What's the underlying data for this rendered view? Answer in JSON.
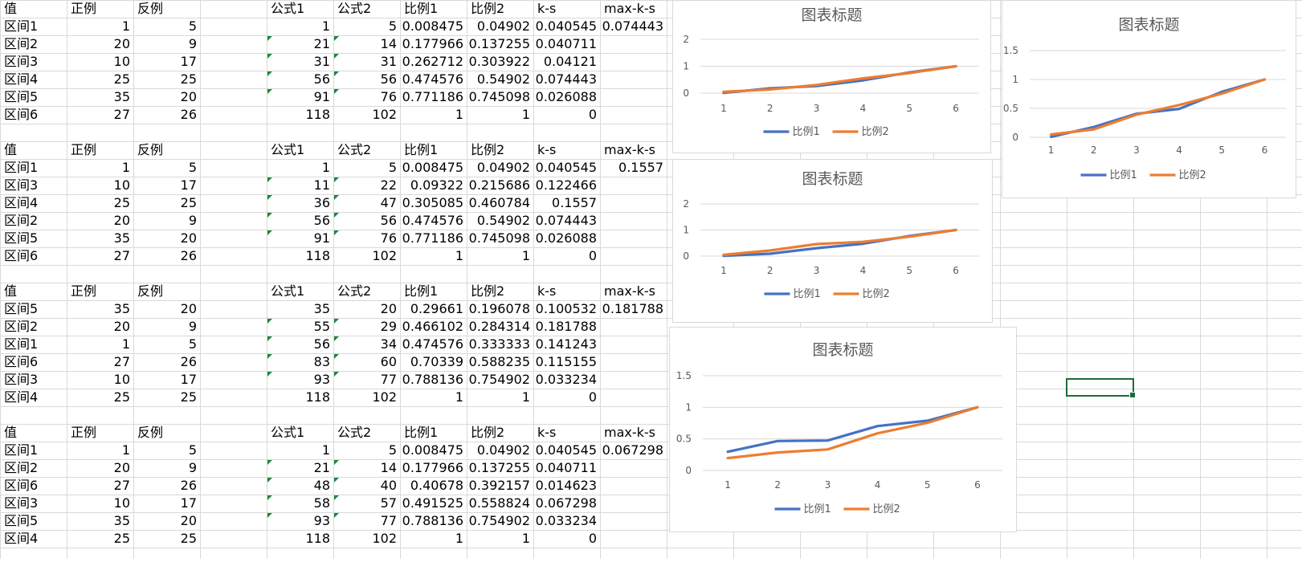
{
  "tables": [
    {
      "header": [
        "值",
        "正例",
        "反例",
        "公式1",
        "公式2",
        "比例1",
        "比例2",
        "k-s",
        "max-k-s"
      ],
      "max_ks": "0.074443",
      "rows": [
        [
          "区间1",
          "1",
          "5",
          "1",
          "5",
          "0.008475",
          "0.04902",
          "0.040545"
        ],
        [
          "区间2",
          "20",
          "9",
          "21",
          "14",
          "0.177966",
          "0.137255",
          "0.040711"
        ],
        [
          "区间3",
          "10",
          "17",
          "31",
          "31",
          "0.262712",
          "0.303922",
          "0.04121"
        ],
        [
          "区间4",
          "25",
          "25",
          "56",
          "56",
          "0.474576",
          "0.54902",
          "0.074443"
        ],
        [
          "区间5",
          "35",
          "20",
          "91",
          "76",
          "0.771186",
          "0.745098",
          "0.026088"
        ],
        [
          "区间6",
          "27",
          "26",
          "118",
          "102",
          "1",
          "1",
          "0"
        ]
      ]
    },
    {
      "header": [
        "值",
        "正例",
        "反例",
        "公式1",
        "公式2",
        "比例1",
        "比例2",
        "k-s",
        "max-k-s"
      ],
      "max_ks": "0.1557",
      "rows": [
        [
          "区间1",
          "1",
          "5",
          "1",
          "5",
          "0.008475",
          "0.04902",
          "0.040545"
        ],
        [
          "区间3",
          "10",
          "17",
          "11",
          "22",
          "0.09322",
          "0.215686",
          "0.122466"
        ],
        [
          "区间4",
          "25",
          "25",
          "36",
          "47",
          "0.305085",
          "0.460784",
          "0.1557"
        ],
        [
          "区间2",
          "20",
          "9",
          "56",
          "56",
          "0.474576",
          "0.54902",
          "0.074443"
        ],
        [
          "区间5",
          "35",
          "20",
          "91",
          "76",
          "0.771186",
          "0.745098",
          "0.026088"
        ],
        [
          "区间6",
          "27",
          "26",
          "118",
          "102",
          "1",
          "1",
          "0"
        ]
      ]
    },
    {
      "header": [
        "值",
        "正例",
        "反例",
        "公式1",
        "公式2",
        "比例1",
        "比例2",
        "k-s",
        "max-k-s"
      ],
      "max_ks": "0.181788",
      "rows": [
        [
          "区间5",
          "35",
          "20",
          "35",
          "20",
          "0.29661",
          "0.196078",
          "0.100532"
        ],
        [
          "区间2",
          "20",
          "9",
          "55",
          "29",
          "0.466102",
          "0.284314",
          "0.181788"
        ],
        [
          "区间1",
          "1",
          "5",
          "56",
          "34",
          "0.474576",
          "0.333333",
          "0.141243"
        ],
        [
          "区间6",
          "27",
          "26",
          "83",
          "60",
          "0.70339",
          "0.588235",
          "0.115155"
        ],
        [
          "区间3",
          "10",
          "17",
          "93",
          "77",
          "0.788136",
          "0.754902",
          "0.033234"
        ],
        [
          "区间4",
          "25",
          "25",
          "118",
          "102",
          "1",
          "1",
          "0"
        ]
      ]
    },
    {
      "header": [
        "值",
        "正例",
        "反例",
        "公式1",
        "公式2",
        "比例1",
        "比例2",
        "k-s",
        "max-k-s"
      ],
      "max_ks": "0.067298",
      "rows": [
        [
          "区间1",
          "1",
          "5",
          "1",
          "5",
          "0.008475",
          "0.04902",
          "0.040545"
        ],
        [
          "区间2",
          "20",
          "9",
          "21",
          "14",
          "0.177966",
          "0.137255",
          "0.040711"
        ],
        [
          "区间6",
          "27",
          "26",
          "48",
          "40",
          "0.40678",
          "0.392157",
          "0.014623"
        ],
        [
          "区间3",
          "10",
          "17",
          "58",
          "57",
          "0.491525",
          "0.558824",
          "0.067298"
        ],
        [
          "区间5",
          "35",
          "20",
          "93",
          "77",
          "0.788136",
          "0.754902",
          "0.033234"
        ],
        [
          "区间4",
          "25",
          "25",
          "118",
          "102",
          "1",
          "1",
          "0"
        ]
      ]
    }
  ],
  "colors": {
    "series1": "#4472c4",
    "series2": "#ed7d31",
    "grid": "#d9d9d9",
    "selection": "#1e6b3a",
    "formula_indicator": "#1a8a3a"
  },
  "chart_data": [
    {
      "type": "line",
      "title": "图表标题",
      "categories": [
        "1",
        "2",
        "3",
        "4",
        "5",
        "6"
      ],
      "ylim": [
        0,
        2
      ],
      "yticks": [
        "0",
        "1",
        "2"
      ],
      "series": [
        {
          "name": "比例1",
          "values": [
            0.008475,
            0.177966,
            0.262712,
            0.474576,
            0.771186,
            1
          ]
        },
        {
          "name": "比例2",
          "values": [
            0.04902,
            0.137255,
            0.303922,
            0.54902,
            0.745098,
            1
          ]
        }
      ],
      "grid": true,
      "legend": "bottom"
    },
    {
      "type": "line",
      "title": "图表标题",
      "categories": [
        "1",
        "2",
        "3",
        "4",
        "5",
        "6"
      ],
      "ylim": [
        0,
        1.5
      ],
      "yticks": [
        "0",
        "0.5",
        "1",
        "1.5"
      ],
      "series": [
        {
          "name": "比例1",
          "values": [
            0.008475,
            0.177966,
            0.40678,
            0.491525,
            0.788136,
            1
          ]
        },
        {
          "name": "比例2",
          "values": [
            0.04902,
            0.137255,
            0.392157,
            0.558824,
            0.754902,
            1
          ]
        }
      ],
      "grid": true,
      "legend": "bottom"
    },
    {
      "type": "line",
      "title": "图表标题",
      "categories": [
        "1",
        "2",
        "3",
        "4",
        "5",
        "6"
      ],
      "ylim": [
        0,
        2
      ],
      "yticks": [
        "0",
        "1",
        "2"
      ],
      "series": [
        {
          "name": "比例1",
          "values": [
            0.008475,
            0.09322,
            0.305085,
            0.474576,
            0.771186,
            1
          ]
        },
        {
          "name": "比例2",
          "values": [
            0.04902,
            0.215686,
            0.460784,
            0.54902,
            0.745098,
            1
          ]
        }
      ],
      "grid": true,
      "legend": "bottom"
    },
    {
      "type": "line",
      "title": "图表标题",
      "categories": [
        "1",
        "2",
        "3",
        "4",
        "5",
        "6"
      ],
      "ylim": [
        0,
        1.5
      ],
      "yticks": [
        "0",
        "0.5",
        "1",
        "1.5"
      ],
      "series": [
        {
          "name": "比例1",
          "values": [
            0.29661,
            0.466102,
            0.474576,
            0.70339,
            0.788136,
            1
          ]
        },
        {
          "name": "比例2",
          "values": [
            0.196078,
            0.284314,
            0.333333,
            0.588235,
            0.754902,
            1
          ]
        }
      ],
      "grid": true,
      "legend": "bottom"
    }
  ]
}
